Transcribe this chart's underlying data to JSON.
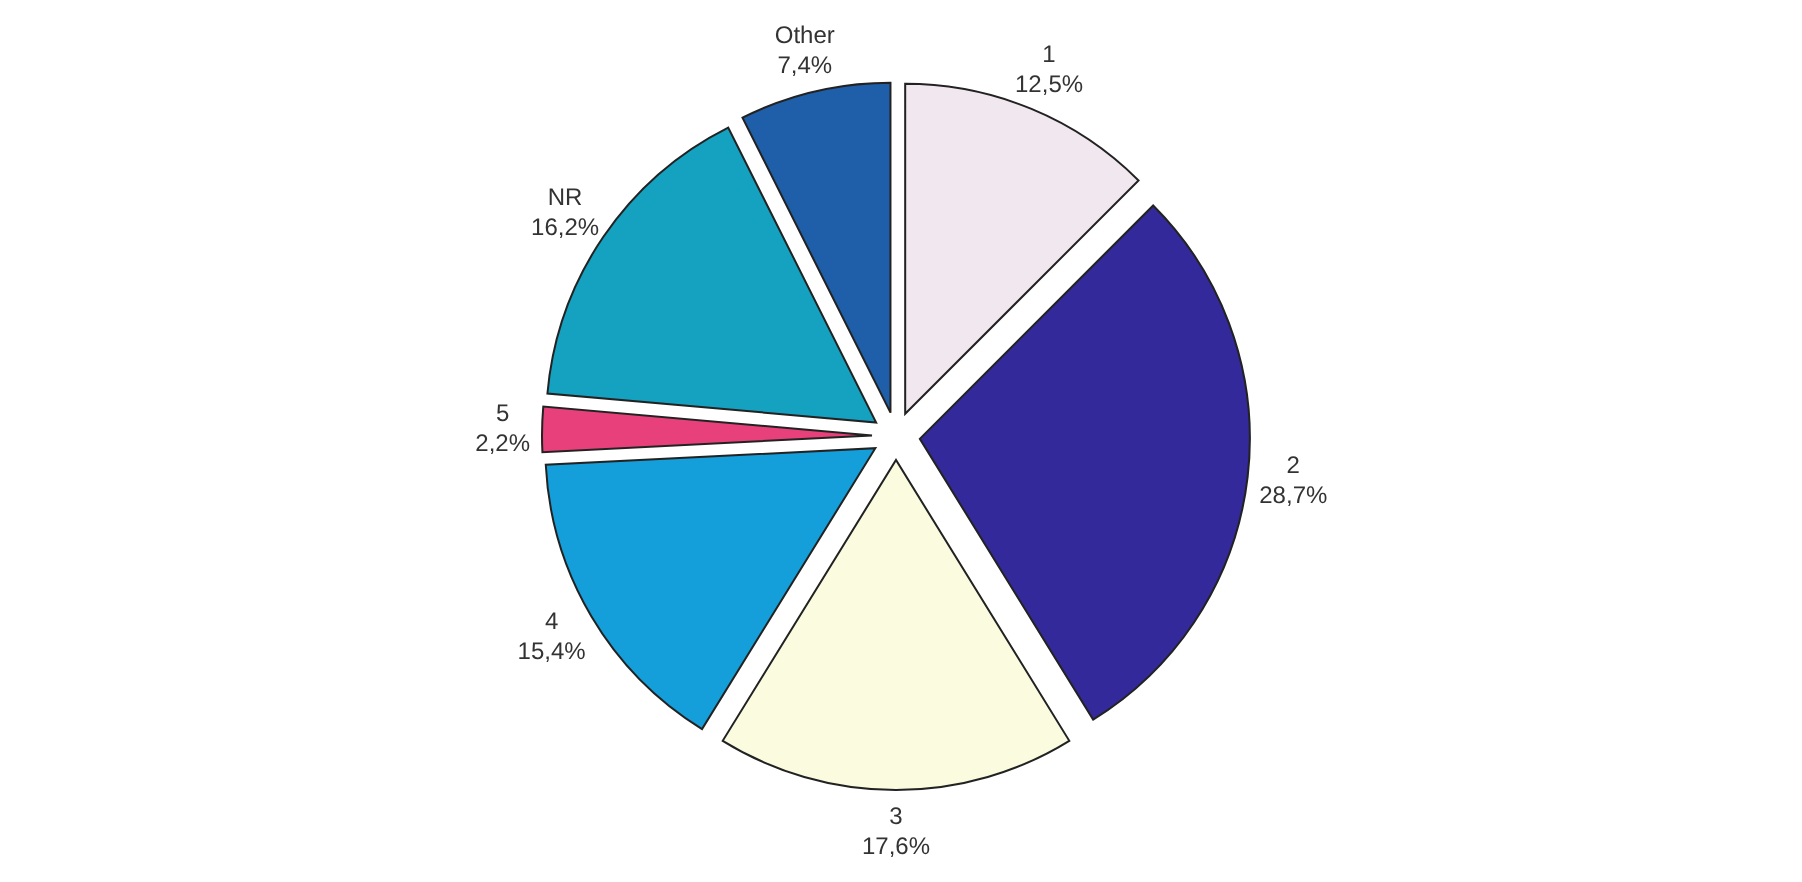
{
  "chart_data": {
    "type": "pie",
    "categories": [
      "1",
      "2",
      "3",
      "4",
      "5",
      "NR",
      "Other"
    ],
    "values": [
      12.5,
      28.7,
      17.6,
      15.4,
      2.2,
      16.2,
      7.4
    ],
    "value_labels": [
      "12,5%",
      "28,7%",
      "17,6%",
      "15,4%",
      "2,2%",
      "16,2%",
      "7,4%"
    ],
    "colors": [
      "#f1e7ef",
      "#33299b",
      "#fbfbe0",
      "#149fdb",
      "#e8407a",
      "#14a2c0",
      "#1f5ea8"
    ]
  }
}
